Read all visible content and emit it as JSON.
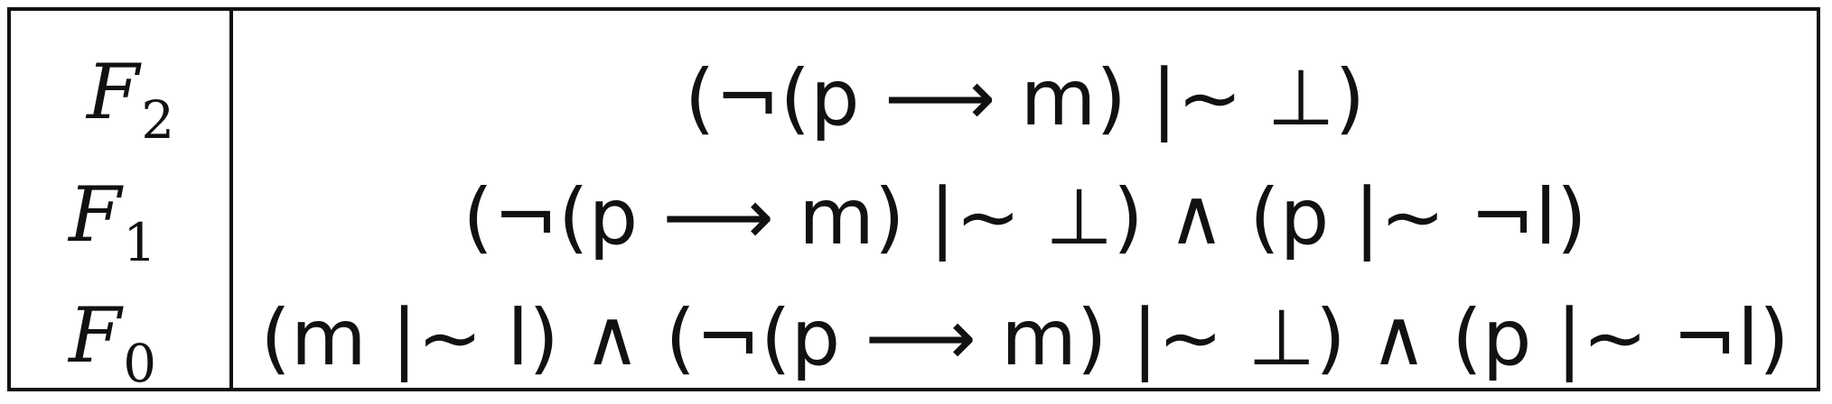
{
  "table": {
    "rows": [
      {
        "label": "F",
        "subscript": "2",
        "formula": "(¬(p ⟶ m) |∼ ⊥)"
      },
      {
        "label": "F",
        "subscript": "1",
        "formula": "(¬(p ⟶ m) |∼ ⊥) ∧ (p |∼ ¬l)"
      },
      {
        "label": "F",
        "subscript": "0",
        "formula": "(m |∼ l) ∧ (¬(p ⟶ m) |∼ ⊥) ∧ (p |∼ ¬l)"
      }
    ]
  }
}
